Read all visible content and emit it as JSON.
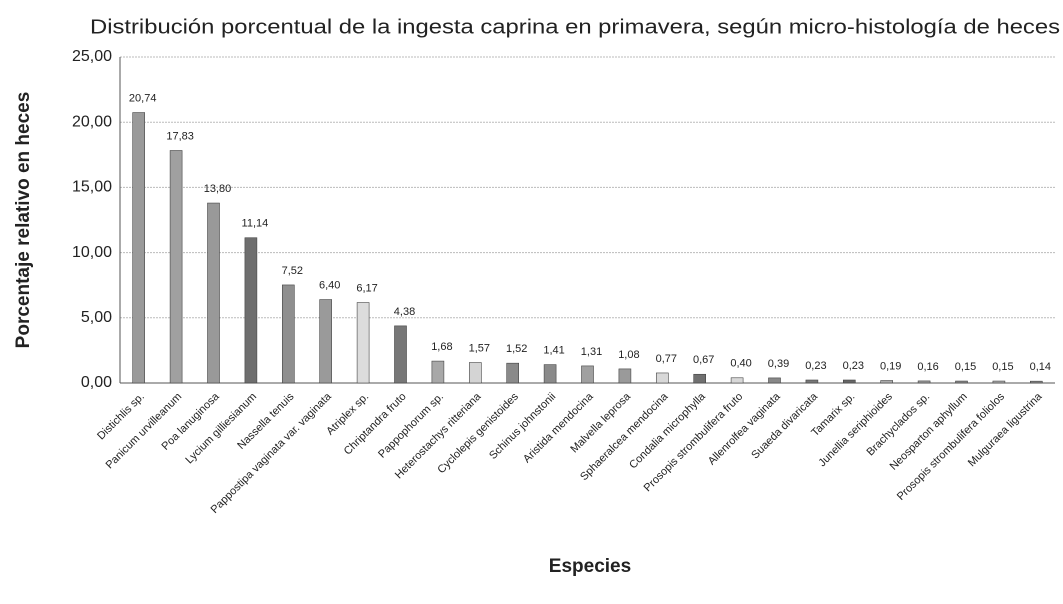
{
  "chart_data": {
    "type": "bar",
    "title": "Distribución porcentual de la ingesta caprina en primavera, según micro-histología de heces",
    "x_label": "Especies",
    "y_label": "Porcentaje relativo en heces",
    "categories": [
      "Distichlis sp.",
      "Panicum urvilleanum",
      "Poa lanuginosa",
      "Lycium gilliesianum",
      "Nassella tenuis",
      "Pappostipa vaginata var. vaginata",
      "Atriplex sp.",
      "Chriptandra fruto",
      "Pappophorum sp.",
      "Heterostachys ritteriana",
      "Cyclolepis genistoides",
      "Schinus johnstonii",
      "Aristida mendocina",
      "Malvella leprosa",
      "Sphaeralcea mendocina",
      "Condalia microphylla",
      "Prosopis strombulifera fruto",
      "Allenrolfea vaginata",
      "Suaeda divaricata",
      "Tamarix sp.",
      "Junellia seriphioides",
      "Brachyclados sp.",
      "Neosparton aphyllum",
      "Prosopis strombulifera foliolos",
      "Mulguraea ligustrina"
    ],
    "values": [
      20.74,
      17.83,
      13.8,
      11.14,
      7.52,
      6.4,
      6.17,
      4.38,
      1.68,
      1.57,
      1.52,
      1.41,
      1.31,
      1.08,
      0.77,
      0.67,
      0.4,
      0.39,
      0.23,
      0.23,
      0.19,
      0.16,
      0.15,
      0.15,
      0.14
    ],
    "value_labels": [
      "20,74",
      "17,83",
      "13,80",
      "11,14",
      "7,52",
      "6,40",
      "6,17",
      "4,38",
      "1,68",
      "1,57",
      "1,52",
      "1,41",
      "1,31",
      "1,08",
      "0,77",
      "0,67",
      "0,40",
      "0,39",
      "0,23",
      "0,23",
      "0,19",
      "0,16",
      "0,15",
      "0,15",
      "0,14"
    ],
    "colors": [
      "#9a9a9a",
      "#a0a0a0",
      "#999999",
      "#6e6e6e",
      "#8f8f8f",
      "#9a9a9a",
      "#dcdcdc",
      "#777777",
      "#a8a8a8",
      "#d4d4d4",
      "#8a8a8a",
      "#8a8a8a",
      "#a0a0a0",
      "#9a9a9a",
      "#d8d8d8",
      "#707070",
      "#d8d8d8",
      "#888888",
      "#777777",
      "#666666",
      "#aaaaaa",
      "#999999",
      "#888888",
      "#aaaaaa",
      "#888888"
    ],
    "ylim": [
      0,
      25
    ],
    "yticks": [
      {
        "value": 0,
        "label": "0,00"
      },
      {
        "value": 5,
        "label": "5,00"
      },
      {
        "value": 10,
        "label": "10,00"
      },
      {
        "value": 15,
        "label": "15,00"
      },
      {
        "value": 20,
        "label": "20,00"
      },
      {
        "value": 25,
        "label": "25,00"
      }
    ],
    "grid": true
  }
}
